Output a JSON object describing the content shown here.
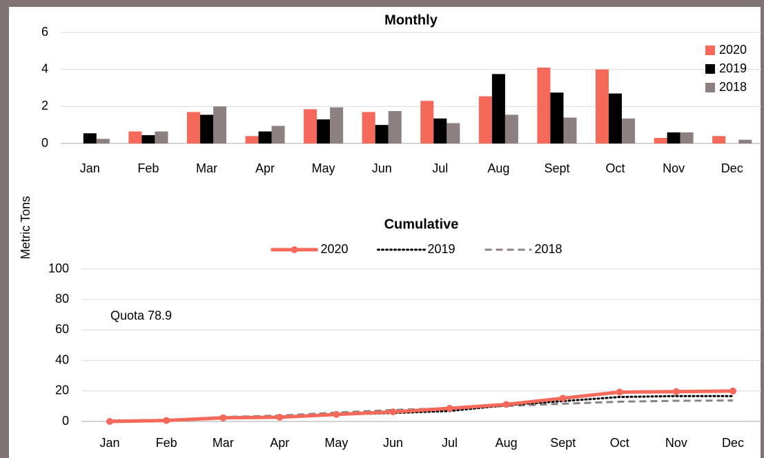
{
  "y_label": "Metric Tons",
  "chart_data": [
    {
      "type": "bar",
      "title": "Monthly",
      "categories": [
        "Jan",
        "Feb",
        "Mar",
        "Apr",
        "May",
        "Jun",
        "Jul",
        "Aug",
        "Sept",
        "Oct",
        "Nov",
        "Dec"
      ],
      "series": [
        {
          "name": "2020",
          "color": "#f4695a",
          "values": [
            0,
            0.65,
            1.7,
            0.4,
            1.85,
            1.7,
            2.3,
            2.55,
            4.1,
            4.0,
            0.3,
            0.4
          ]
        },
        {
          "name": "2019",
          "color": "#000000",
          "values": [
            0.55,
            0.45,
            1.55,
            0.65,
            1.3,
            1.0,
            1.35,
            3.75,
            2.75,
            2.7,
            0.6,
            0
          ]
        },
        {
          "name": "2018",
          "color": "#8c8080",
          "values": [
            0.25,
            0.65,
            2.0,
            0.95,
            1.95,
            1.75,
            1.1,
            1.55,
            1.4,
            1.35,
            0.6,
            0.2
          ]
        }
      ],
      "ylim": [
        0,
        6
      ],
      "yticks": [
        0,
        2,
        4,
        6
      ],
      "grid": true,
      "legend": "right"
    },
    {
      "type": "line",
      "title": "Cumulative",
      "categories": [
        "Jan",
        "Feb",
        "Mar",
        "Apr",
        "May",
        "Jun",
        "Jul",
        "Aug",
        "Sept",
        "Oct",
        "Nov",
        "Dec"
      ],
      "series": [
        {
          "name": "2020",
          "color": "#f4695a",
          "dash": "solid",
          "marker": true,
          "values": [
            0,
            0.65,
            2.35,
            2.75,
            4.6,
            6.3,
            8.6,
            11.15,
            15.25,
            19.25,
            19.55,
            19.95
          ]
        },
        {
          "name": "2019",
          "color": "#000000",
          "dash": "dotted",
          "marker": false,
          "values": [
            0.55,
            1.0,
            2.55,
            3.2,
            4.5,
            5.5,
            6.85,
            10.6,
            13.35,
            16.05,
            16.65,
            16.65
          ]
        },
        {
          "name": "2018",
          "color": "#8c8080",
          "dash": "dashed",
          "marker": false,
          "values": [
            0.25,
            0.9,
            2.9,
            3.85,
            5.8,
            7.55,
            8.65,
            10.2,
            11.6,
            12.95,
            13.55,
            13.75
          ]
        }
      ],
      "quota": {
        "value": 78.9,
        "label": "Quota 78.9",
        "color": "#2f4b9c"
      },
      "ylim": [
        0,
        100
      ],
      "yticks": [
        0,
        20,
        40,
        60,
        80,
        100
      ],
      "grid": true,
      "legend": "top"
    }
  ]
}
